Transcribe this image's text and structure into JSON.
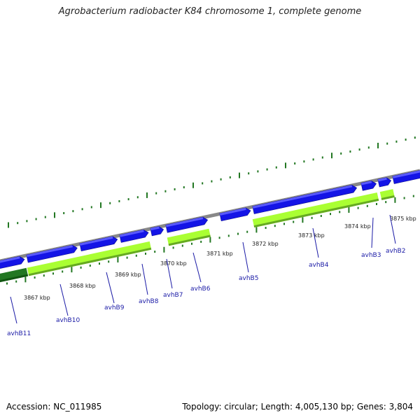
{
  "title": "Agrobacterium radiobacter K84 chromosome 1, complete genome",
  "footer": {
    "accession": "Accession: NC_011985",
    "summary": "Topology: circular; Length: 4,005,130 bp; Genes: 3,804"
  },
  "colors": {
    "backbone": "#888888",
    "gene_blue": "#1414e6",
    "gene_lime": "#aaff33",
    "gene_dark_green": "#227722",
    "tick_green": "#227722",
    "label_blue": "#1a1aa6"
  },
  "kbp_labels": [
    "3867 kbp",
    "3868 kbp",
    "3869 kbp",
    "3870 kbp",
    "3871 kbp",
    "3872 kbp",
    "3873 kbp",
    "3874 kbp",
    "3875 kbp"
  ],
  "gene_labels": [
    "avhB11",
    "avhB10",
    "avhB9",
    "avhB8",
    "avhB7",
    "avhB6",
    "avhB5",
    "avhB4",
    "avhB3",
    "avhB2"
  ]
}
